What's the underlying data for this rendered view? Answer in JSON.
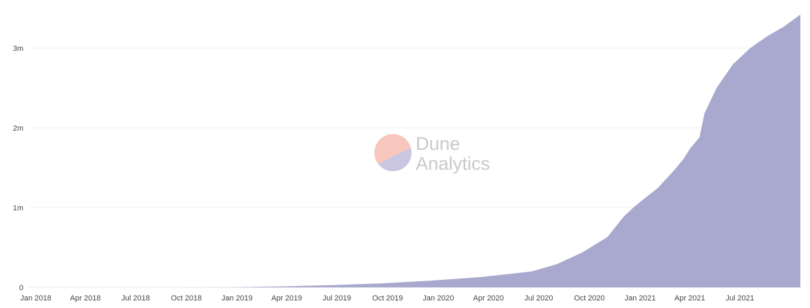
{
  "chart_data": {
    "type": "area",
    "title": "",
    "xlabel": "",
    "ylabel": "",
    "x_ticks": [
      "Jan 2018",
      "Apr 2018",
      "Jul 2018",
      "Oct 2018",
      "Jan 2019",
      "Apr 2019",
      "Jul 2019",
      "Oct 2019",
      "Jan 2020",
      "Apr 2020",
      "Jul 2020",
      "Oct 2020",
      "Jan 2021",
      "Apr 2021",
      "Jul 2021"
    ],
    "y_ticks": [
      {
        "value": 0,
        "label": "0"
      },
      {
        "value": 1000000,
        "label": "1m"
      },
      {
        "value": 2000000,
        "label": "2m"
      },
      {
        "value": 3000000,
        "label": "3m"
      }
    ],
    "xlim": [
      "2018-01-01",
      "2021-10-31"
    ],
    "ylim": [
      0,
      3500000
    ],
    "grid": "horizontal",
    "colors": {
      "area": "#a9a9cf",
      "grid": "#ececec"
    },
    "series": [
      {
        "x": [
          "2018-01-01",
          "2018-07-01",
          "2019-01-01",
          "2019-04-01",
          "2019-07-01",
          "2019-10-01",
          "2020-01-01",
          "2020-04-01",
          "2020-07-01",
          "2020-08-15",
          "2020-10-01",
          "2020-11-15",
          "2020-12-15",
          "2021-01-01",
          "2021-01-15",
          "2021-02-15",
          "2021-03-15",
          "2021-04-01",
          "2021-04-15",
          "2021-05-01",
          "2021-05-10",
          "2021-06-01",
          "2021-07-01",
          "2021-08-01",
          "2021-09-01",
          "2021-10-01",
          "2021-10-31"
        ],
        "y": [
          0,
          0,
          1000,
          12000,
          28000,
          50000,
          85000,
          130000,
          200000,
          290000,
          440000,
          630000,
          890000,
          1000000,
          1080000,
          1250000,
          1460000,
          1600000,
          1750000,
          1880000,
          2180000,
          2500000,
          2800000,
          3000000,
          3150000,
          3270000,
          3420000
        ]
      }
    ]
  },
  "watermark": {
    "line1": "Dune",
    "line2": "Analytics",
    "logo_top_color": "#f7c6bc",
    "logo_bottom_color": "#c9c6e2",
    "text_color": "#c9c9c9"
  }
}
